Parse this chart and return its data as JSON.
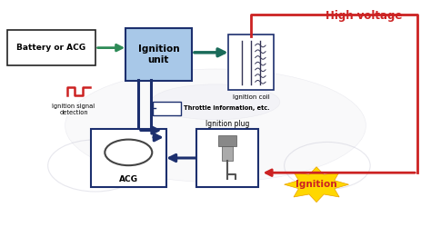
{
  "bg_color": "#ffffff",
  "dark_blue": "#1c2f6e",
  "green": "#2e8b57",
  "dark_teal": "#1a6b5a",
  "red": "#cc2222",
  "coil_line_color": "#333355",
  "acg_circle_color": "#444444",
  "ignition_unit_fill": "#a8c8e8",
  "ignition_unit_border": "#1c2f6e",
  "battery_border": "#222222",
  "coil_border": "#1c2f6e",
  "acg_border": "#1c2f6e",
  "plug_border": "#1c2f6e",
  "burst_fill": "#FFD700",
  "moto_color": "#cccccc",
  "nodes": {
    "battery": [
      0.02,
      0.72,
      0.19,
      0.14
    ],
    "ign_unit": [
      0.295,
      0.67,
      0.14,
      0.2
    ],
    "coil": [
      0.535,
      0.63,
      0.1,
      0.22
    ],
    "acg": [
      0.215,
      0.22,
      0.165,
      0.23
    ],
    "plug": [
      0.46,
      0.22,
      0.135,
      0.23
    ]
  },
  "labels": {
    "battery": "Battery or ACG",
    "ign_unit": "Ignition\nunit",
    "coil_below": "Ignition coil",
    "high_voltage": "High voltage",
    "throttle": "Throttle information, etc.",
    "ign_signal": "Ignition signal\ndetection",
    "acg": "ACG",
    "plug_above": "Ignition plug",
    "ignition": "Ignition"
  }
}
